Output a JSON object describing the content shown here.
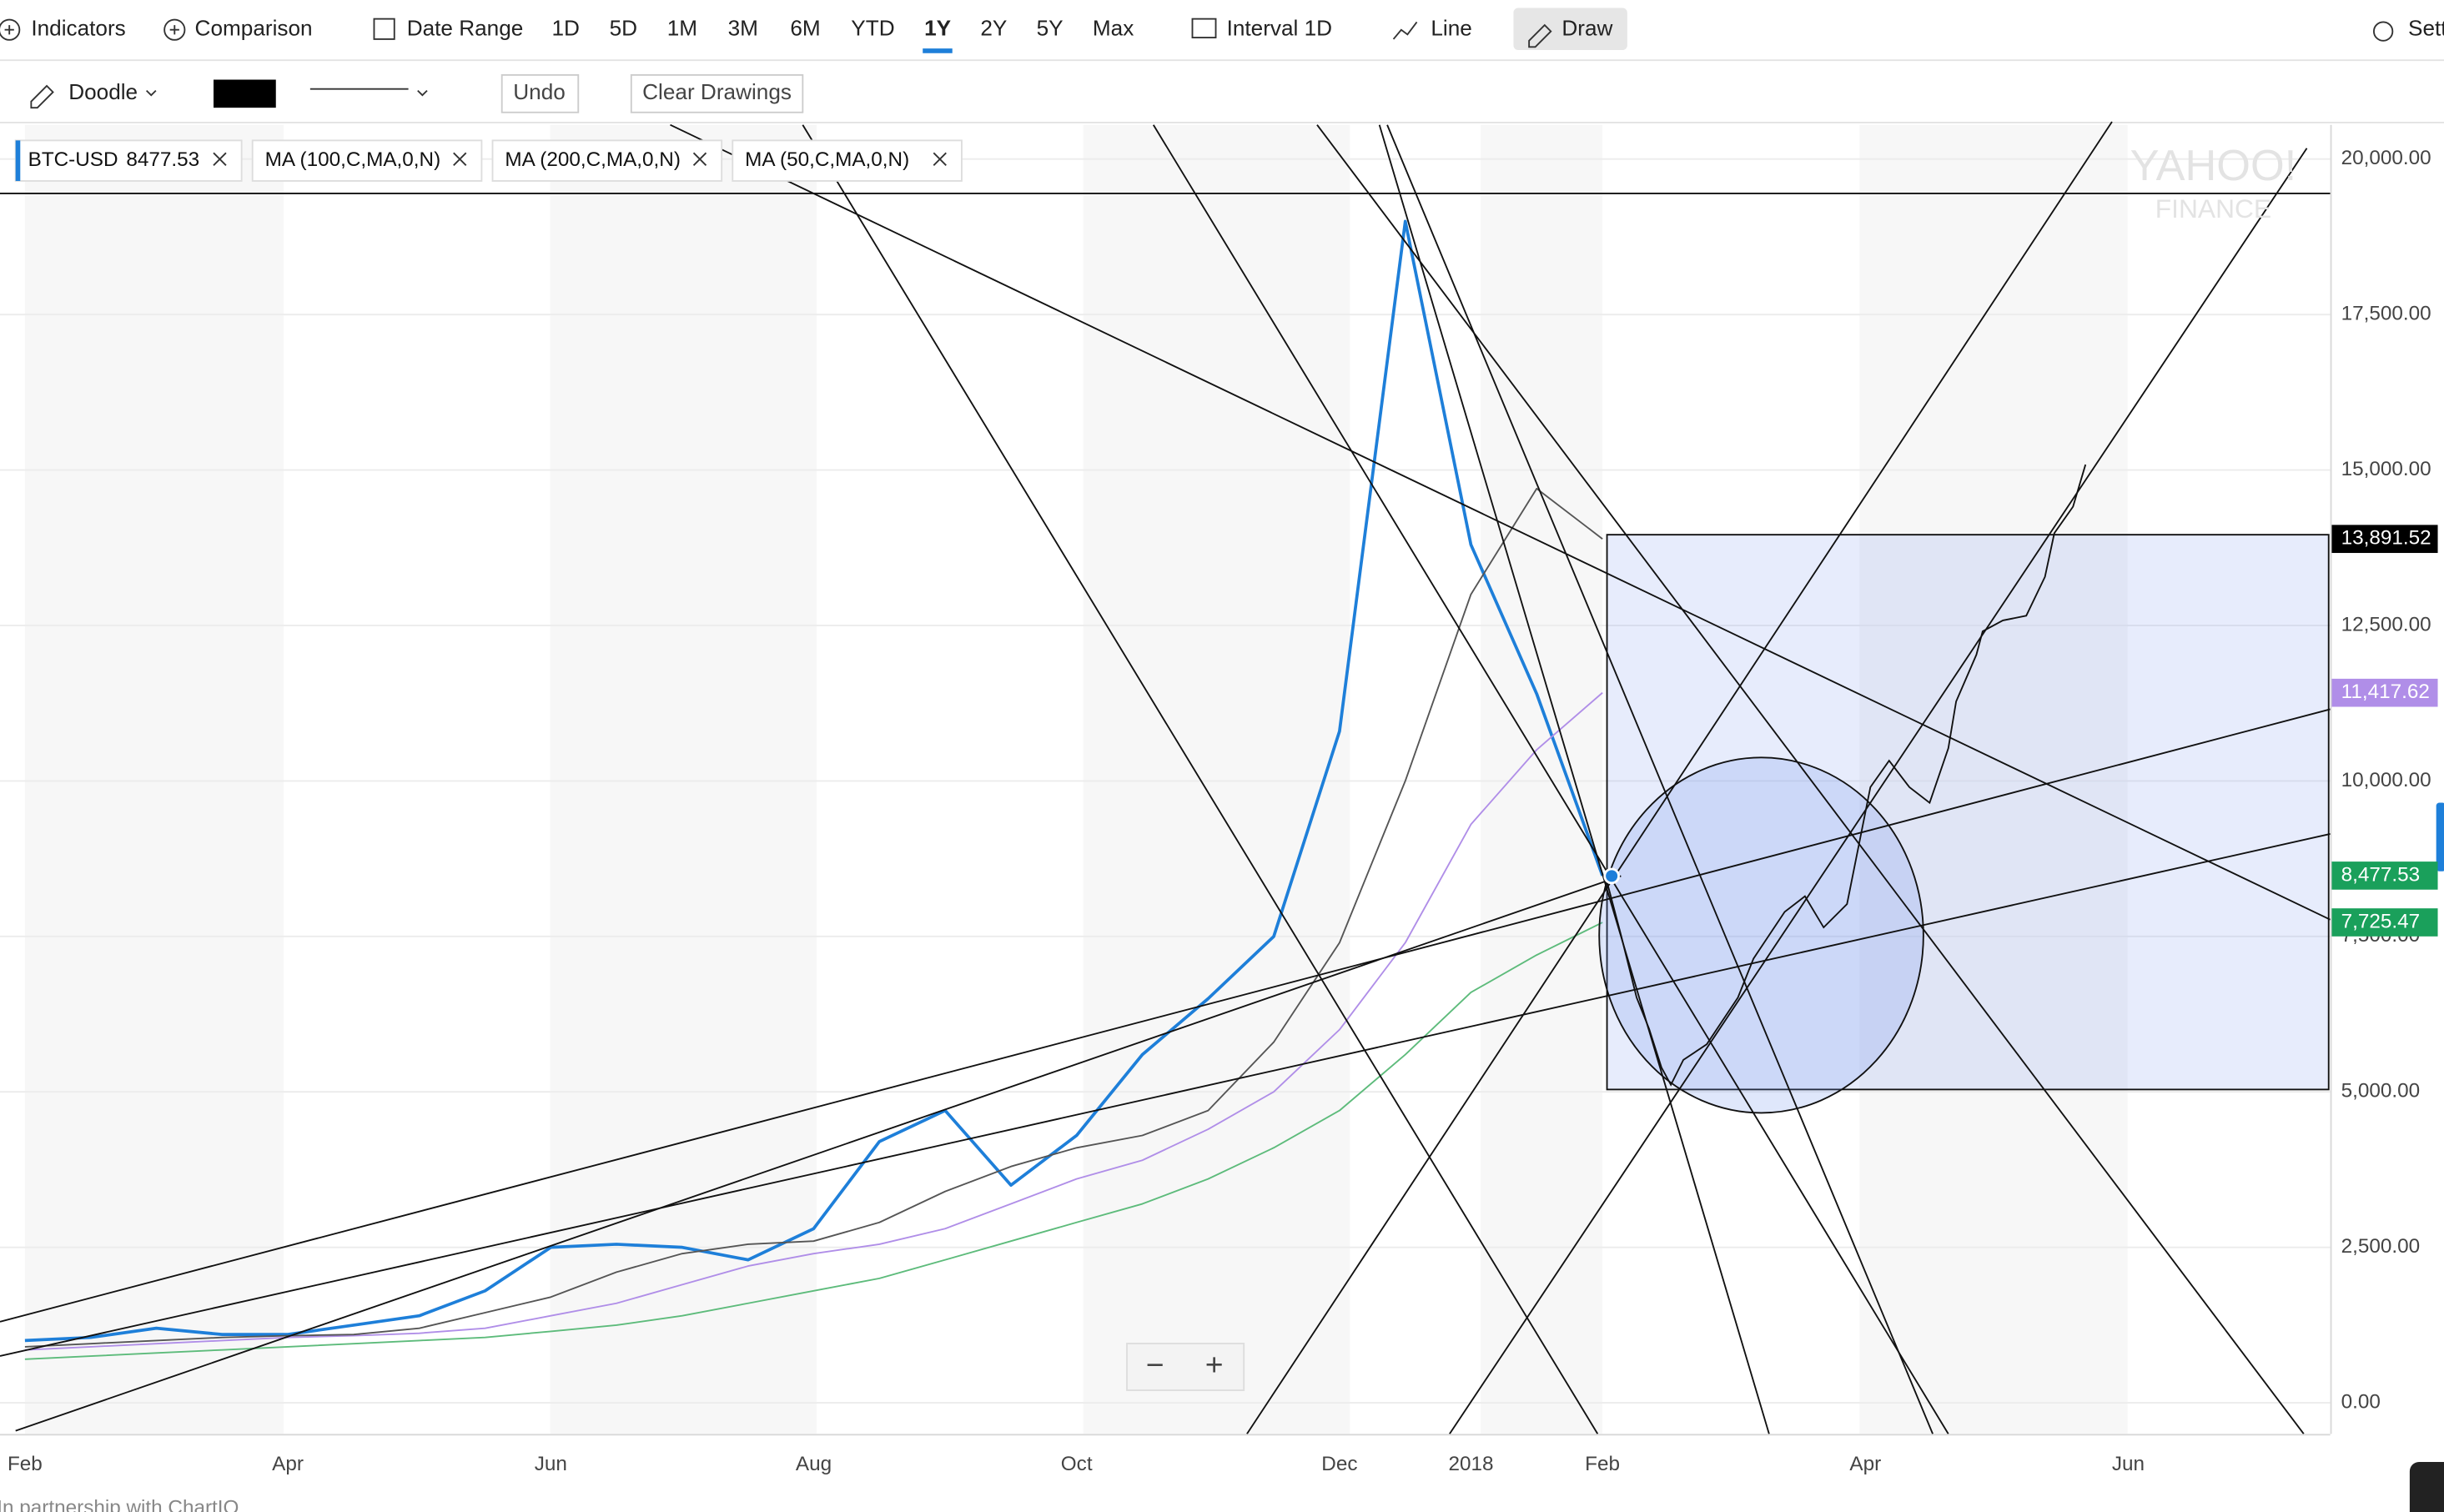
{
  "toolbar": {
    "items": [
      "Indicators",
      "Comparison",
      "Date Range",
      "1D",
      "5D",
      "1M",
      "3M",
      "6M",
      "YTD",
      "1Y",
      "2Y",
      "5Y",
      "Max",
      "Interval 1D",
      "Line",
      "Draw",
      "Sett"
    ]
  },
  "drawing_bar": {
    "tool": "Doodle",
    "undo": "Undo",
    "clear": "Clear Drawings"
  },
  "zoom": [
    "−",
    "+"
  ],
  "watermark": [
    "YAHOO!",
    "FINANCE"
  ],
  "footer": "In partnership with ChartIQ",
  "chart_data": {
    "type": "line",
    "categories": [
      "Feb",
      null,
      null,
      null,
      "Apr",
      null,
      null,
      null,
      "Jun",
      null,
      null,
      null,
      "Aug",
      null,
      null,
      null,
      "Oct",
      null,
      null,
      null,
      "Dec",
      null,
      "2018",
      null,
      "Feb",
      null,
      null,
      null,
      "Apr",
      null,
      null,
      null,
      "Jun",
      null,
      null,
      null
    ],
    "series": [
      {
        "name": "BTC-USD",
        "legend_value": "8477.53",
        "color": "#1e7fd9",
        "values": [
          1000,
          1050,
          1200,
          1100,
          1100,
          1250,
          1400,
          1800,
          2500,
          2550,
          2500,
          2300,
          2800,
          4200,
          4700,
          3500,
          4300,
          5600,
          6500,
          7500,
          10800,
          19000,
          13800,
          11400,
          8477.53,
          null,
          null,
          null,
          null,
          null,
          null,
          null,
          null,
          null,
          null,
          null
        ],
        "value_labels": [
          null,
          null,
          null,
          null,
          null,
          null,
          null,
          null,
          null,
          null,
          null,
          null,
          null,
          null,
          null,
          null,
          null,
          null,
          null,
          null,
          null,
          null,
          null,
          null,
          "8,477.53",
          null,
          null,
          null,
          null,
          null,
          null,
          null,
          null,
          null,
          null,
          null
        ]
      },
      {
        "name": "MA (100,C,MA,0,N)",
        "color": "#b08ee8",
        "values": [
          850,
          900,
          950,
          1000,
          1050,
          1080,
          1120,
          1200,
          1400,
          1600,
          1900,
          2200,
          2400,
          2550,
          2800,
          3200,
          3600,
          3900,
          4400,
          5000,
          6000,
          7400,
          9300,
          10500,
          11417.62,
          null,
          null,
          null,
          null,
          null,
          null,
          null,
          null,
          null,
          null,
          null
        ],
        "value_labels": [
          null,
          null,
          null,
          null,
          null,
          null,
          null,
          null,
          null,
          null,
          null,
          null,
          null,
          null,
          null,
          null,
          null,
          null,
          null,
          null,
          null,
          null,
          null,
          null,
          "11,417.62",
          null,
          null,
          null,
          null,
          null,
          null,
          null,
          null,
          null,
          null,
          null
        ]
      },
      {
        "name": "MA (200,C,MA,0,N)",
        "color": "#5dbb7b",
        "values": [
          700,
          750,
          800,
          850,
          900,
          950,
          1000,
          1050,
          1150,
          1250,
          1400,
          1600,
          1800,
          2000,
          2300,
          2600,
          2900,
          3200,
          3600,
          4100,
          4700,
          5600,
          6600,
          7200,
          7725.47,
          null,
          null,
          null,
          null,
          null,
          null,
          null,
          null,
          null,
          null,
          null
        ],
        "value_labels": [
          null,
          null,
          null,
          null,
          null,
          null,
          null,
          null,
          null,
          null,
          null,
          null,
          null,
          null,
          null,
          null,
          null,
          null,
          null,
          null,
          null,
          null,
          null,
          null,
          "7,725.47",
          null,
          null,
          null,
          null,
          null,
          null,
          null,
          null,
          null,
          null,
          null
        ]
      },
      {
        "name": "MA (50,C,MA,0,N)",
        "color": "#555555",
        "values": [
          900,
          950,
          1000,
          1050,
          1080,
          1100,
          1200,
          1450,
          1700,
          2100,
          2400,
          2550,
          2600,
          2900,
          3400,
          3800,
          4100,
          4300,
          4700,
          5800,
          7400,
          10000,
          13000,
          14700,
          13891.52,
          null,
          null,
          null,
          null,
          null,
          null,
          null,
          null,
          null,
          null,
          null
        ],
        "value_labels": [
          null,
          null,
          null,
          null,
          null,
          null,
          null,
          null,
          null,
          null,
          null,
          null,
          null,
          null,
          null,
          null,
          null,
          null,
          null,
          null,
          null,
          null,
          null,
          null,
          "13,891.52",
          null,
          null,
          null,
          null,
          null,
          null,
          null,
          null,
          null,
          null,
          null
        ]
      }
    ],
    "ylim": [
      -500,
      20550
    ],
    "yticks": [
      {
        "value": 0,
        "label": "0.00"
      },
      {
        "value": 2500,
        "label": "2,500.00"
      },
      {
        "value": 5000,
        "label": "5,000.00"
      },
      {
        "value": 7500,
        "label": "7,500.00"
      },
      {
        "value": 10000,
        "label": "10,000.00"
      },
      {
        "value": 12500,
        "label": "12,500.00"
      },
      {
        "value": 15000,
        "label": "15,000.00"
      },
      {
        "value": 17500,
        "label": "17,500.00"
      },
      {
        "value": 20000,
        "label": "20,000.00"
      }
    ],
    "grid": true
  }
}
